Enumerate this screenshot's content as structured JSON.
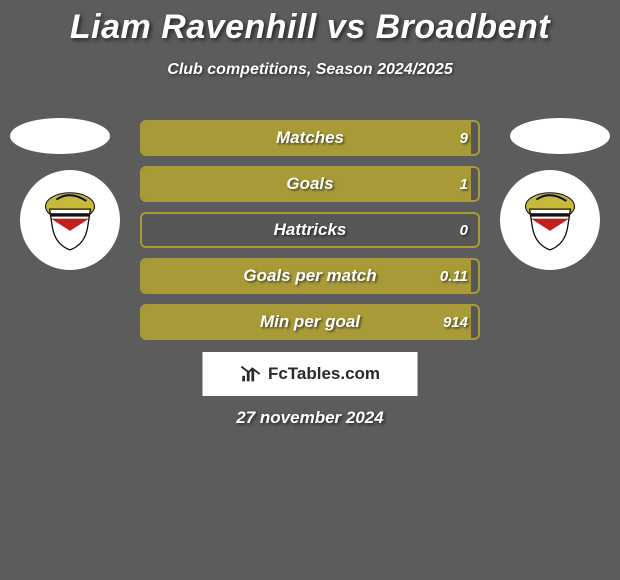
{
  "title": "Liam Ravenhill vs Broadbent",
  "subtitle": "Club competitions, Season 2024/2025",
  "accent_color": "#a79a37",
  "fill_color": "#a79a37",
  "border_color": "#a79a37",
  "text_color": "#ffffff",
  "shadow_color": "rgba(0,0,0,0.6)",
  "background": "#5c5c5c",
  "stats": [
    {
      "label": "Matches",
      "value": "9",
      "fill_pct": 98
    },
    {
      "label": "Goals",
      "value": "1",
      "fill_pct": 98
    },
    {
      "label": "Hattricks",
      "value": "0",
      "fill_pct": 0
    },
    {
      "label": "Goals per match",
      "value": "0.11",
      "fill_pct": 98
    },
    {
      "label": "Min per goal",
      "value": "914",
      "fill_pct": 98
    }
  ],
  "branding": {
    "icon_name": "barchart-icon",
    "text": "FcTables.com"
  },
  "date": "27 november 2024",
  "badge": {
    "primary": "#c9b93a",
    "shield_bg": "#ffffff",
    "shield_border": "#111111",
    "chevron": "#c02020",
    "stripe": "#111111"
  },
  "title_fontsize": 34,
  "subtitle_fontsize": 16,
  "stat_label_fontsize": 17,
  "stat_value_fontsize": 15,
  "date_fontsize": 17
}
